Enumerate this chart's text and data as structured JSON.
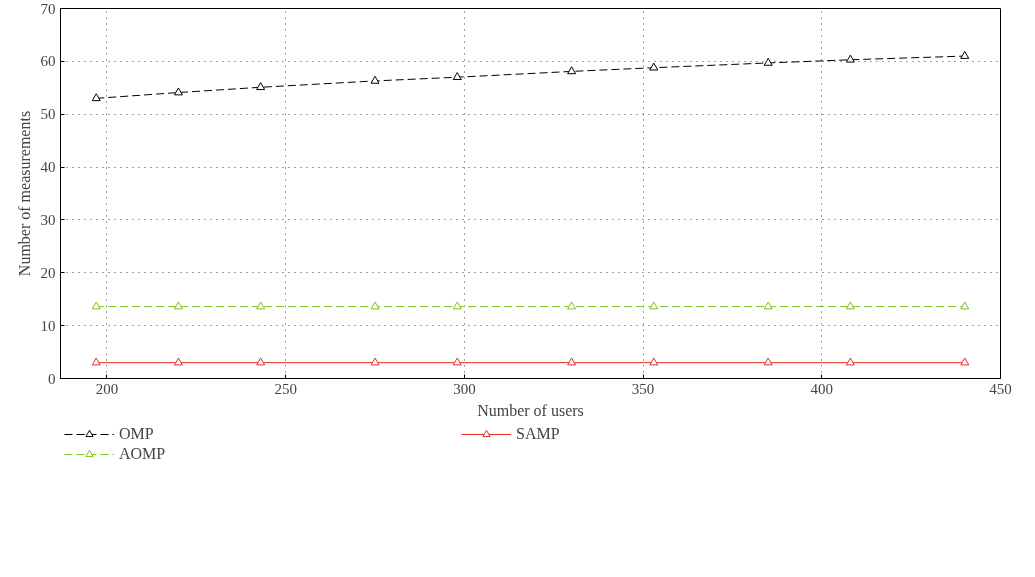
{
  "chart_data": {
    "type": "line",
    "xlabel": "Number of users",
    "ylabel": "Number of measurements",
    "x": [
      197,
      220,
      243,
      275,
      298,
      330,
      353,
      385,
      408,
      440
    ],
    "series": [
      {
        "name": "OMP",
        "color": "#000000",
        "line_style": "dashed",
        "values": [
          53,
          54.1,
          55.1,
          56.3,
          57,
          58.1,
          58.8,
          59.7,
          60.3,
          61
        ]
      },
      {
        "name": "AOMP",
        "color": "#7fc31c",
        "line_style": "dashed",
        "values": [
          13.6,
          13.6,
          13.6,
          13.6,
          13.6,
          13.6,
          13.6,
          13.6,
          13.6,
          13.6
        ]
      },
      {
        "name": "SAMP",
        "color": "#e0302a",
        "line_style": "solid",
        "values": [
          3,
          3,
          3,
          3,
          3,
          3,
          3,
          3,
          3,
          3
        ]
      }
    ],
    "xlim": [
      187,
      450
    ],
    "ylim": [
      0,
      70
    ],
    "xticks": [
      200,
      250,
      300,
      350,
      400,
      450
    ],
    "yticks": [
      0,
      10,
      20,
      30,
      40,
      50,
      60,
      70
    ],
    "grid": true,
    "legend": "bottom",
    "marker": "triangle"
  }
}
